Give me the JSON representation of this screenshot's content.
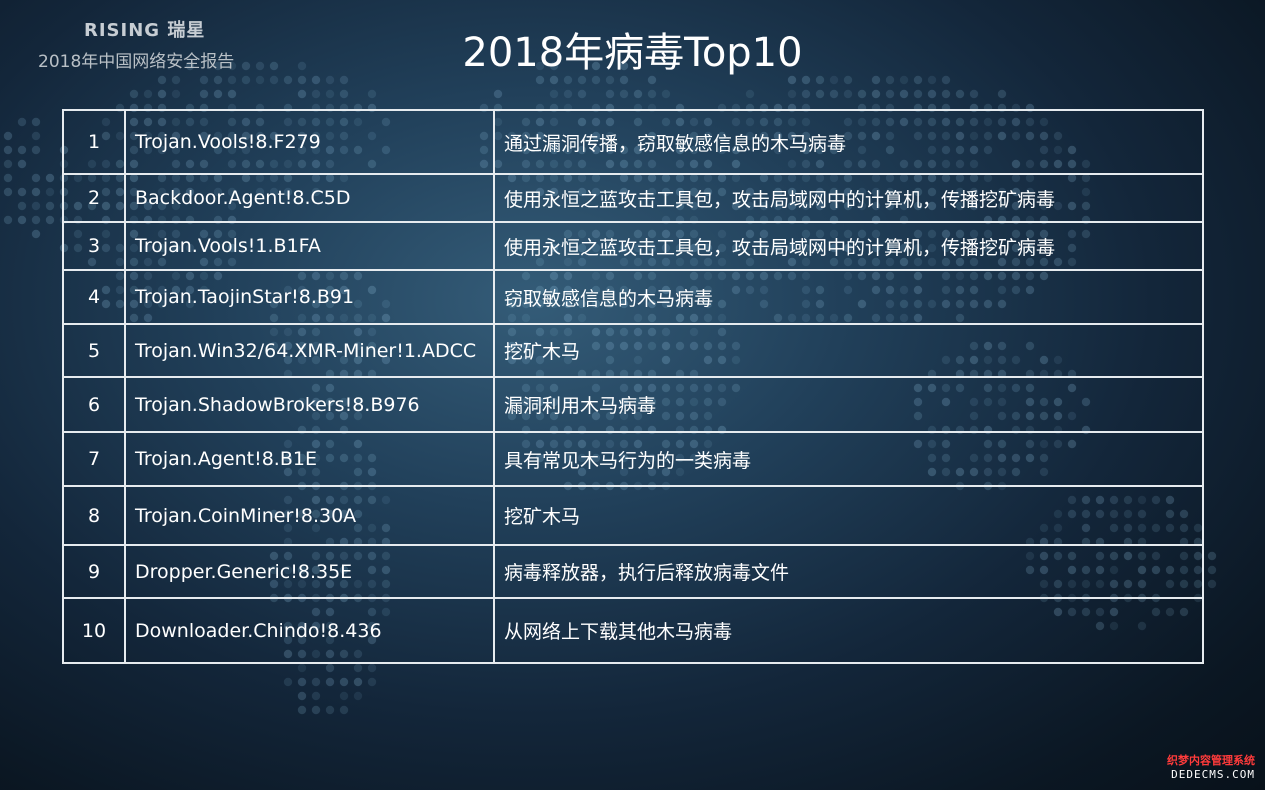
{
  "header": {
    "brand": "RISING 瑞星",
    "report_title": "2018年中国网络安全报告",
    "title": "2018年病毒Top10"
  },
  "table": {
    "rows": [
      {
        "rank": "1",
        "name": "Trojan.Vools!8.F279",
        "desc": "通过漏洞传播，窃取敏感信息的木马病毒"
      },
      {
        "rank": "2",
        "name": "Backdoor.Agent!8.C5D",
        "desc": "使用永恒之蓝攻击工具包，攻击局域网中的计算机，传播挖矿病毒"
      },
      {
        "rank": "3",
        "name": "Trojan.Vools!1.B1FA",
        "desc": "使用永恒之蓝攻击工具包，攻击局域网中的计算机，传播挖矿病毒"
      },
      {
        "rank": "4",
        "name": "Trojan.TaojinStar!8.B91",
        "desc": "窃取敏感信息的木马病毒"
      },
      {
        "rank": "5",
        "name": "Trojan.Win32/64.XMR-Miner!1.ADCC",
        "desc": "挖矿木马"
      },
      {
        "rank": "6",
        "name": "Trojan.ShadowBrokers!8.B976",
        "desc": "漏洞利用木马病毒"
      },
      {
        "rank": "7",
        "name": "Trojan.Agent!8.B1E",
        "desc": "具有常见木马行为的一类病毒"
      },
      {
        "rank": "8",
        "name": "Trojan.CoinMiner!8.30A",
        "desc": "挖矿木马"
      },
      {
        "rank": "9",
        "name": "Dropper.Generic!8.35E",
        "desc": "病毒释放器，执行后释放病毒文件"
      },
      {
        "rank": "10",
        "name": "Downloader.Chindo!8.436",
        "desc": "从网络上下载其他木马病毒"
      }
    ]
  },
  "watermark": {
    "line1": "织梦内容管理系统",
    "line2": "DEDECMS.COM"
  },
  "colors": {
    "background": "#1c3a52",
    "grid_line": "#e6ebef",
    "text": "#ffffff",
    "watermark_red": "#ff3b3b"
  }
}
